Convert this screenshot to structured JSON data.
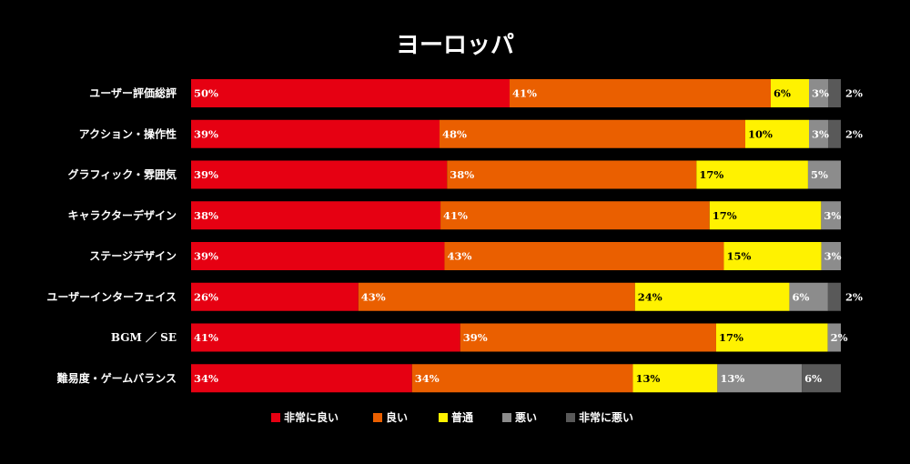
{
  "chart_data": {
    "type": "bar",
    "orientation": "horizontal",
    "stacked": true,
    "percent_stacked": true,
    "title": "ヨーロッパ",
    "xlabel": "",
    "ylabel": "",
    "xlim": [
      0,
      100
    ],
    "categories": [
      "ユーザー評価総評",
      "アクション・操作性",
      "グラフィック・雰囲気",
      "キャラクターデザイン",
      "ステージデザイン",
      "ユーザーインターフェイス",
      "BGM ／ SE",
      "難易度・ゲームバランス"
    ],
    "series": [
      {
        "name": "非常に良い",
        "color": "#e60012",
        "values": [
          50,
          39,
          39,
          38,
          39,
          26,
          41,
          34
        ]
      },
      {
        "name": "良い",
        "color": "#ea5f00",
        "values": [
          41,
          48,
          38,
          41,
          43,
          43,
          39,
          34
        ]
      },
      {
        "name": "普通",
        "color": "#fff200",
        "values": [
          6,
          10,
          17,
          17,
          15,
          24,
          17,
          13
        ]
      },
      {
        "name": "悪い",
        "color": "#8c8c8c",
        "values": [
          3,
          3,
          5,
          3,
          3,
          6,
          2,
          13
        ]
      },
      {
        "name": "非常に悪い",
        "color": "#595959",
        "values": [
          2,
          2,
          0,
          0,
          0,
          2,
          0,
          6
        ]
      }
    ],
    "label_colors": [
      "#ffffff",
      "#ffffff",
      "#000000",
      "#ffffff",
      "#ffffff"
    ],
    "legend_position": "bottom"
  }
}
